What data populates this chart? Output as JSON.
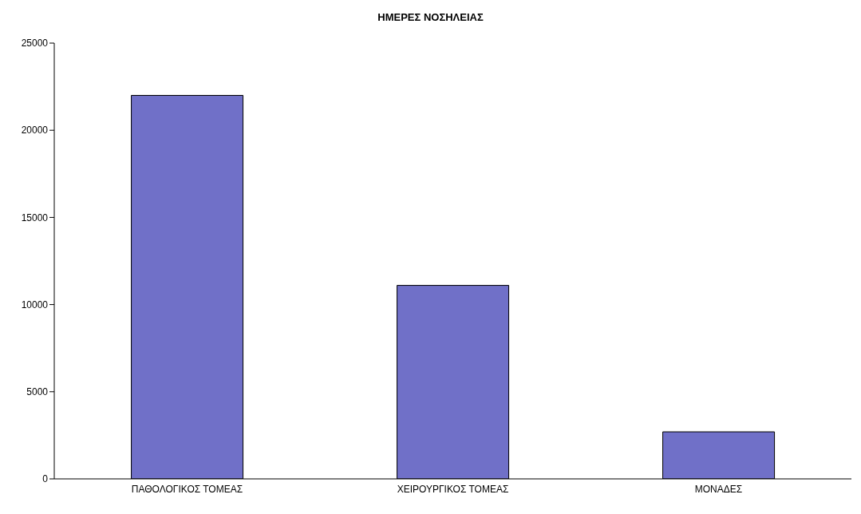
{
  "chart_data": {
    "type": "bar",
    "title": "ΗΜΕΡΕΣ ΝΟΣΗΛΕΙΑΣ",
    "categories": [
      "ΠΑΘΟΛΟΓΙΚΟΣ ΤΟΜΕΑΣ",
      "ΧΕΙΡΟΥΡΓΙΚΟΣ ΤΟΜΕΑΣ",
      "ΜΟΝΑΔΕΣ"
    ],
    "values": [
      22000,
      11100,
      2700
    ],
    "color": "#7070c8",
    "ylim": [
      0,
      25000
    ],
    "yticks": [
      0,
      5000,
      10000,
      15000,
      20000,
      25000
    ],
    "grid": false,
    "legend": false
  }
}
